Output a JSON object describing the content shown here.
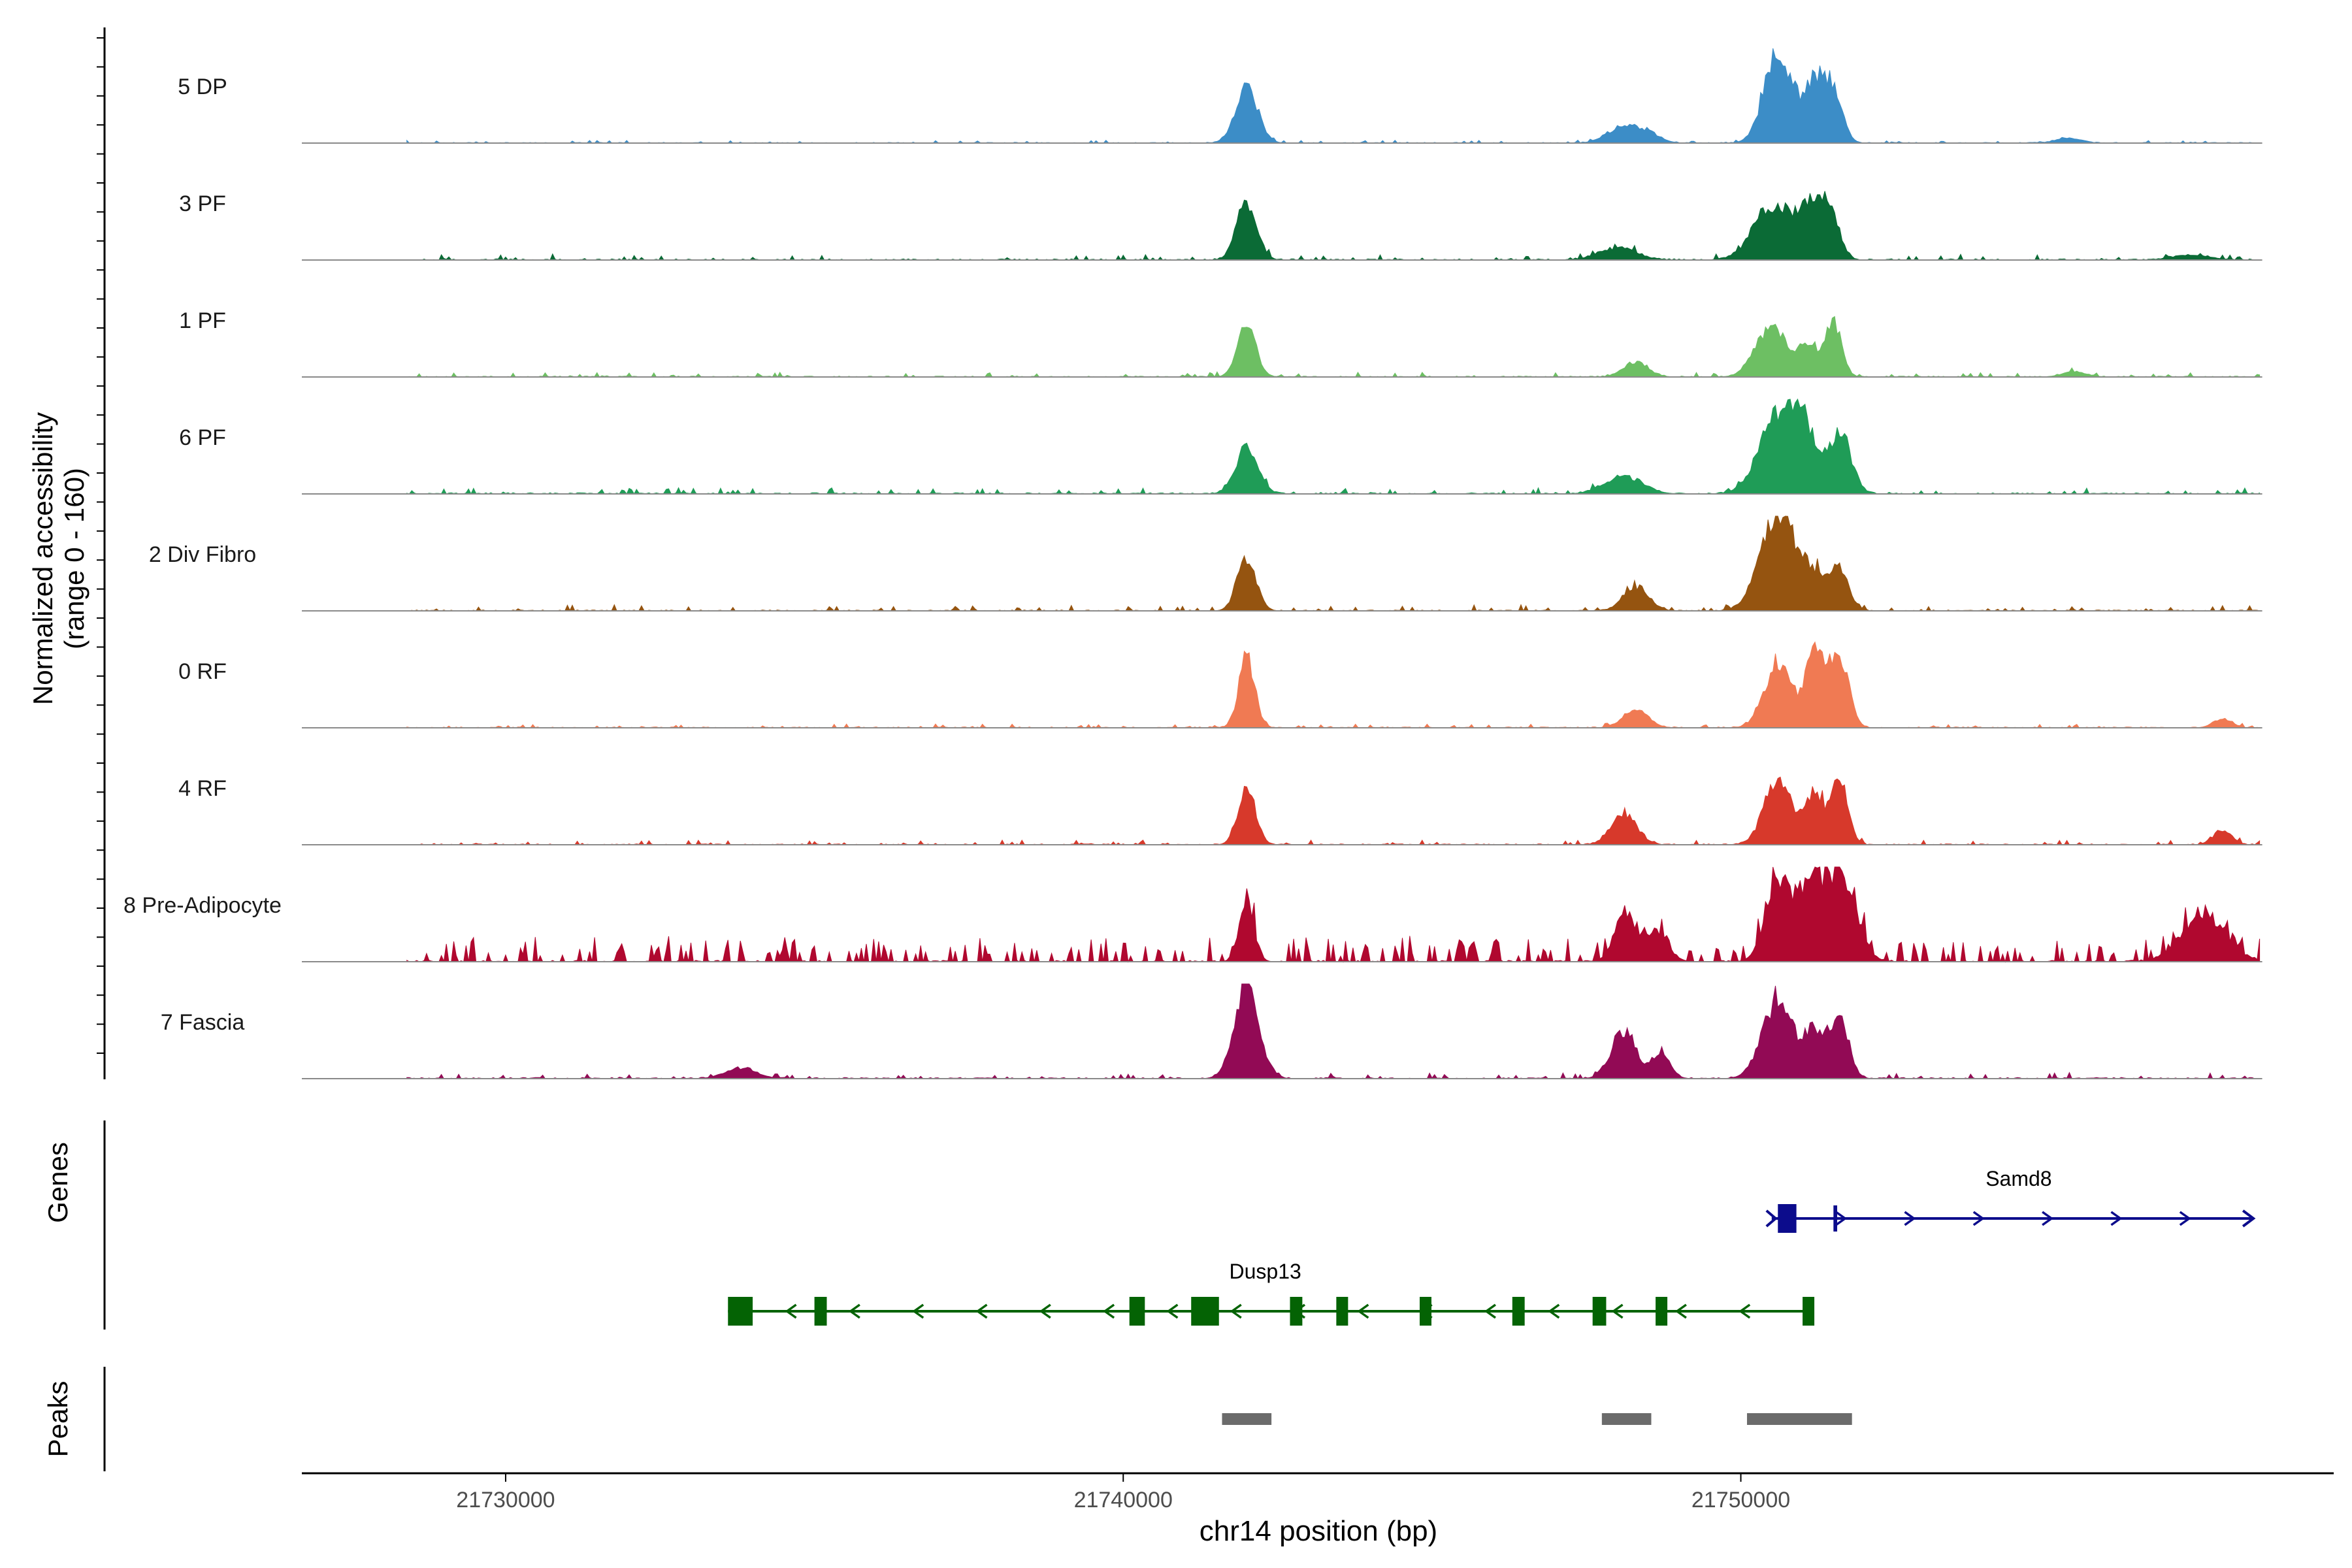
{
  "chart_data": {
    "type": "area",
    "title": "",
    "xlabel": "chr14 position (bp)",
    "ylabel_line1": "Normalized accessibility",
    "ylabel_line2": "(range 0 - 160)",
    "ylim": [
      0,
      160
    ],
    "xlim": [
      21726700,
      21759600
    ],
    "x_ticks": [
      21730000,
      21740000,
      21750000
    ],
    "x_tick_labels": [
      "21730000",
      "21740000",
      "21750000"
    ],
    "track_extent": [
      21728400,
      21758400
    ],
    "series": [
      {
        "name": "5 DP",
        "color": "#3C8DC7",
        "peaks": [
          [
            21742000,
            95,
            180
          ],
          [
            21748100,
            28,
            250
          ],
          [
            21748500,
            14,
            200
          ],
          [
            21750600,
            160,
            220
          ],
          [
            21751200,
            100,
            180
          ],
          [
            21751500,
            75,
            150
          ],
          [
            21755300,
            8,
            200
          ]
        ],
        "baseline": 3,
        "noise": 0.4
      },
      {
        "name": "3 PF",
        "color": "#0B6B36",
        "peaks": [
          [
            21742000,
            100,
            160
          ],
          [
            21748000,
            20,
            300
          ],
          [
            21750500,
            90,
            300
          ],
          [
            21751100,
            85,
            200
          ],
          [
            21751450,
            75,
            150
          ],
          [
            21757300,
            8,
            300
          ]
        ],
        "baseline": 5,
        "noise": 0.5
      },
      {
        "name": "1 PF",
        "color": "#6DBF63",
        "peaks": [
          [
            21742000,
            85,
            150
          ],
          [
            21748300,
            25,
            200
          ],
          [
            21750500,
            85,
            250
          ],
          [
            21751100,
            55,
            150
          ],
          [
            21751500,
            90,
            130
          ],
          [
            21755400,
            8,
            200
          ]
        ],
        "baseline": 4,
        "noise": 0.5
      },
      {
        "name": "6 PF",
        "color": "#1F9C57",
        "peaks": [
          [
            21742000,
            78,
            180
          ],
          [
            21748100,
            30,
            300
          ],
          [
            21750600,
            130,
            300
          ],
          [
            21751000,
            95,
            200
          ],
          [
            21751600,
            105,
            180
          ]
        ],
        "baseline": 5,
        "noise": 0.5
      },
      {
        "name": "2 Div Fibro",
        "color": "#955410",
        "peaks": [
          [
            21742000,
            90,
            150
          ],
          [
            21748300,
            40,
            200
          ],
          [
            21750600,
            170,
            280
          ],
          [
            21751200,
            55,
            200
          ],
          [
            21751600,
            65,
            150
          ]
        ],
        "baseline": 4,
        "noise": 0.6
      },
      {
        "name": "0 RF",
        "color": "#F07A53",
        "peaks": [
          [
            21742000,
            120,
            130
          ],
          [
            21748300,
            30,
            200
          ],
          [
            21750600,
            110,
            220
          ],
          [
            21751200,
            130,
            150
          ],
          [
            21751600,
            120,
            150
          ],
          [
            21757800,
            15,
            150
          ]
        ],
        "baseline": 4,
        "noise": 0.4
      },
      {
        "name": "4 RF",
        "color": "#D7392B",
        "peaks": [
          [
            21742000,
            98,
            140
          ],
          [
            21748100,
            55,
            200
          ],
          [
            21750600,
            110,
            220
          ],
          [
            21751200,
            85,
            150
          ],
          [
            21751600,
            110,
            130
          ],
          [
            21757800,
            25,
            150
          ]
        ],
        "baseline": 4,
        "noise": 0.5
      },
      {
        "name": "8 Pre-Adipocyte",
        "color": "#B0082F",
        "peaks": [
          [
            21742000,
            95,
            120
          ],
          [
            21748100,
            80,
            150
          ],
          [
            21748600,
            50,
            200
          ],
          [
            21750600,
            135,
            200
          ],
          [
            21751100,
            110,
            200
          ],
          [
            21751600,
            150,
            250
          ],
          [
            21757500,
            80,
            350
          ]
        ],
        "baseline": 6,
        "noise": 1.6
      },
      {
        "name": "7 Fascia",
        "color": "#920A55",
        "peaks": [
          [
            21742000,
            155,
            200
          ],
          [
            21748100,
            80,
            200
          ],
          [
            21748700,
            40,
            150
          ],
          [
            21750600,
            130,
            250
          ],
          [
            21751200,
            80,
            150
          ],
          [
            21751600,
            100,
            150
          ],
          [
            21733800,
            18,
            250
          ]
        ],
        "baseline": 5,
        "noise": 0.5
      }
    ],
    "gene_track_label": "Genes",
    "genes": [
      {
        "name": "Samd8",
        "strand": "+",
        "color": "#0C0C8C",
        "start": 21750500,
        "end": 21758300,
        "label_x": 21754500,
        "exons": [
          [
            21750600,
            21750900,
            "large"
          ],
          [
            21751500,
            21751560,
            "tick"
          ]
        ]
      },
      {
        "name": "Dusp13",
        "strand": "-",
        "color": "#046304",
        "start": 21733600,
        "end": 21751100,
        "label_x": 21742300,
        "exons": [
          [
            21733600,
            21734000,
            "large"
          ],
          [
            21735000,
            21735200,
            "small"
          ],
          [
            21740100,
            21740350,
            "small"
          ],
          [
            21741100,
            21741550,
            "large"
          ],
          [
            21742700,
            21742900,
            "small"
          ],
          [
            21743450,
            21743520,
            "small"
          ],
          [
            21744800,
            21744980,
            "small"
          ],
          [
            21746300,
            21746500,
            "small"
          ],
          [
            21747600,
            21747820,
            "small"
          ],
          [
            21748620,
            21748800,
            "small"
          ],
          [
            21751000,
            21751120,
            "small"
          ]
        ]
      }
    ],
    "peak_track_label": "Peaks",
    "peak_regions": [
      [
        21741600,
        21742400
      ],
      [
        21747750,
        21748550
      ],
      [
        21750100,
        21751800
      ]
    ]
  }
}
